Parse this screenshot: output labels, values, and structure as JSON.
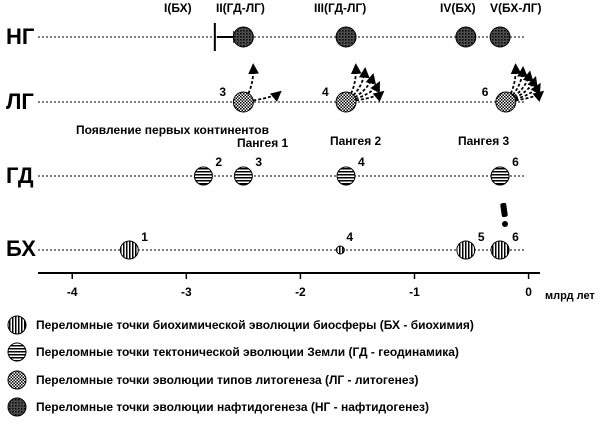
{
  "rows": [
    {
      "id": "ng",
      "label": "НГ"
    },
    {
      "id": "lg",
      "label": "ЛГ"
    },
    {
      "id": "gd",
      "label": "ГД"
    },
    {
      "id": "bh",
      "label": "БХ"
    }
  ],
  "top_labels": [
    "I(БХ)",
    "II(ГД-ЛГ)",
    "III(ГД-ЛГ)",
    "IV(БХ)",
    "V(БХ-ЛГ)"
  ],
  "ng_points": [
    {
      "x": -2.5,
      "label": ""
    },
    {
      "x": -1.6,
      "label": ""
    },
    {
      "x": -0.55,
      "label": ""
    },
    {
      "x": -0.25,
      "label": ""
    }
  ],
  "lg_points": [
    {
      "x": -2.5,
      "label": "3",
      "arrows": 2
    },
    {
      "x": -1.6,
      "label": "4",
      "arrows": 5
    },
    {
      "x": -0.2,
      "label": "6",
      "arrows": 6
    }
  ],
  "gd_points": [
    {
      "x": -2.85,
      "label": "2"
    },
    {
      "x": -2.5,
      "label": "3"
    },
    {
      "x": -1.6,
      "label": "4"
    },
    {
      "x": -0.25,
      "label": "6"
    }
  ],
  "bh_points": [
    {
      "x": -3.5,
      "label": "1",
      "small": false
    },
    {
      "x": -1.65,
      "label": "4",
      "small": true
    },
    {
      "x": -0.55,
      "label": "5",
      "small": false
    },
    {
      "x": -0.25,
      "label": "6",
      "small": false
    }
  ],
  "first_marker_x": -2.75,
  "annotations": {
    "continents": "Появление первых континентов",
    "pangea1": "Пангея 1",
    "pangea2": "Пангея 2",
    "pangea3": "Пангея 3",
    "exclaim": "!"
  },
  "axis": {
    "min": -4.3,
    "max": 0.1,
    "ticks": [
      -4,
      -3,
      -2,
      -1,
      0
    ],
    "tick_labels": [
      "-4",
      "-3",
      "-2",
      "-1",
      "0"
    ],
    "unit": "млрд лет"
  },
  "legend": [
    {
      "pattern": "vertical",
      "text": "Переломные точки биохимической эволюции биосферы (БХ - биохимия)"
    },
    {
      "pattern": "horizontal",
      "text": "Переломные точки  тектонической  эволюции Земли (ГД - геодинамика)"
    },
    {
      "pattern": "crosshatch",
      "text": "Переломные точки эволюции типов литогенеза (ЛГ - литогенез)"
    },
    {
      "pattern": "dots",
      "text": "Переломные точки эволюции нафтидогенеза (НГ - нафтидогенез)"
    }
  ]
}
